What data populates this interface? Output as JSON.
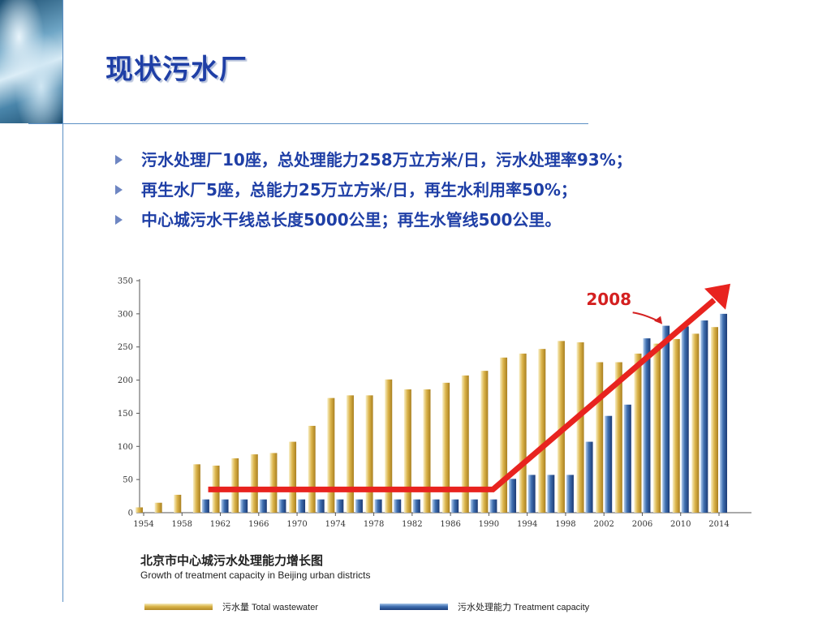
{
  "slide": {
    "title": "现状污水厂",
    "bullets": [
      "污水处理厂10座，总处理能力258万立方米/日，污水处理率93%；",
      "再生水厂5座，总能力25万立方米/日，再生水利用率50%；",
      "中心城污水干线总长度5000公里；再生水管线500公里。"
    ]
  },
  "colors": {
    "title": "#1f3fa6",
    "wastewater": "#d4ac45",
    "capacity": "#3a6aad",
    "trend_arrow": "#e8231f",
    "annotation": "#d42020"
  },
  "chart_data": {
    "type": "bar",
    "title": "北京市中心城污水处理能力增长图",
    "subtitle": "Growth of treatment capacity in Beijing urban districts",
    "ylim": [
      0,
      350
    ],
    "yticks": [
      0,
      50,
      100,
      150,
      200,
      250,
      300,
      350
    ],
    "x": [
      1954,
      1956,
      1958,
      1960,
      1962,
      1964,
      1966,
      1968,
      1970,
      1972,
      1974,
      1976,
      1978,
      1980,
      1982,
      1984,
      1986,
      1988,
      1990,
      1992,
      1994,
      1996,
      1998,
      2000,
      2002,
      2004,
      2006,
      2008,
      2010,
      2012,
      2014
    ],
    "xtick_labels": [
      "1954",
      "1958",
      "1962",
      "1966",
      "1970",
      "1974",
      "1978",
      "1982",
      "1986",
      "1990",
      "1994",
      "1998",
      "2002",
      "2006",
      "2010",
      "2014"
    ],
    "series": [
      {
        "name": "污水量    Total wastewater",
        "values": [
          8,
          15,
          27,
          73,
          71,
          82,
          88,
          90,
          107,
          131,
          173,
          177,
          177,
          201,
          186,
          186,
          196,
          207,
          214,
          234,
          240,
          247,
          259,
          257,
          227,
          227,
          240,
          255,
          262,
          270,
          280
        ]
      },
      {
        "name": "污水处理能力    Treatment capacity",
        "values": [
          0,
          0,
          0,
          20,
          20,
          20,
          20,
          20,
          20,
          20,
          20,
          20,
          20,
          20,
          20,
          20,
          20,
          20,
          20,
          51,
          57,
          57,
          57,
          107,
          146,
          163,
          263,
          282,
          281,
          290,
          300
        ]
      }
    ],
    "annotations": [
      {
        "text": "2008"
      }
    ],
    "grid": false,
    "legend": "bottom"
  }
}
